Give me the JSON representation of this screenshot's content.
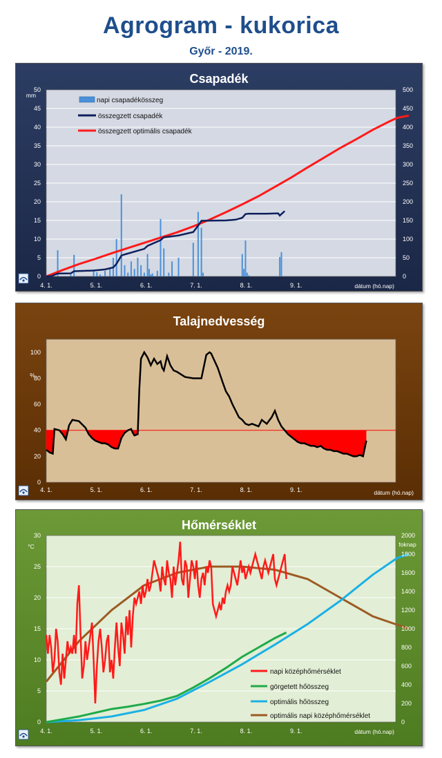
{
  "header": {
    "title": "Agrogram - kukorica",
    "subtitle": "Győr - 2019."
  },
  "colors": {
    "title": "#1f4e8c",
    "rain_panel": "#24355a",
    "soil_panel": "#6b3a0a",
    "temp_panel": "#5e8c2c"
  },
  "icons": {
    "logo": "omsz-logo-icon"
  },
  "chart_data": [
    {
      "type": "bar",
      "title": "Csapadék",
      "ylabel_left": "mm",
      "ylim_left": [
        0,
        50
      ],
      "yticks_left": [
        "0",
        "5",
        "10",
        "15",
        "20",
        "25",
        "30",
        "35",
        "40",
        "45",
        "50"
      ],
      "ylabel_right": "",
      "ylim_right": [
        0,
        500
      ],
      "yticks_right": [
        "0",
        "50",
        "100",
        "150",
        "200",
        "250",
        "300",
        "350",
        "400",
        "450",
        "500"
      ],
      "xlabel": "dátum (hó.nap)",
      "xticks": [
        "4. 1.",
        "5. 1.",
        "6. 1.",
        "7. 1.",
        "8. 1.",
        "9. 1."
      ],
      "legend_position": "top-left",
      "grid": true,
      "series": [
        {
          "name": "napi csapadékösszeg",
          "kind": "bar",
          "axis": "left",
          "color": "#4a90d9",
          "x": [
            4,
            7,
            15,
            17,
            29,
            31,
            33,
            36,
            39,
            41,
            43,
            46,
            48,
            50,
            52,
            54,
            56,
            58,
            60,
            62,
            63,
            64,
            65,
            68,
            70,
            72,
            75,
            77,
            81,
            90,
            93,
            95,
            96,
            120,
            121,
            122,
            123,
            124,
            143,
            144
          ],
          "y": [
            0.6,
            7.0,
            0.5,
            5.8,
            1.8,
            1.1,
            0.5,
            1.5,
            2.0,
            5.0,
            10.0,
            22.0,
            3.0,
            1.0,
            4.0,
            2.0,
            5.0,
            3.0,
            1.0,
            6.0,
            2.0,
            0.5,
            0.8,
            1.5,
            15.4,
            7.5,
            1.0,
            4.0,
            5.0,
            9.0,
            17.3,
            13.0,
            1.0,
            6.0,
            2.0,
            9.6,
            1.0,
            0.3,
            5.2,
            6.5
          ]
        },
        {
          "name": "összegzett csapadék",
          "kind": "step",
          "axis": "right",
          "color": "#0d1f5c",
          "x": [
            0,
            3,
            7,
            15,
            17,
            29,
            33,
            36,
            41,
            43,
            46,
            48,
            52,
            56,
            60,
            62,
            70,
            72,
            81,
            90,
            93,
            95,
            110,
            116,
            120,
            122,
            124,
            135,
            142,
            143,
            144,
            146
          ],
          "y": [
            0,
            0.6,
            7.6,
            8.1,
            13.9,
            15.7,
            17.3,
            18.8,
            23.8,
            33.8,
            55.8,
            58.8,
            63.8,
            68.8,
            73.8,
            81.8,
            97.2,
            104.7,
            109.7,
            118.7,
            136,
            149,
            150,
            152,
            157,
            167,
            168,
            168,
            169,
            163,
            167,
            175
          ]
        },
        {
          "name": "összegzett optimális csapadék",
          "kind": "line",
          "axis": "right",
          "color": "#ff1a1a",
          "x": [
            0,
            10,
            20,
            30,
            40,
            50,
            60,
            70,
            80,
            90,
            100,
            110,
            120,
            130,
            140,
            150,
            160,
            170,
            180,
            190,
            200,
            210,
            215,
            222
          ],
          "y": [
            0,
            17,
            33,
            47,
            62,
            76,
            90,
            104,
            118,
            134,
            152,
            172,
            193,
            215,
            240,
            265,
            292,
            318,
            344,
            368,
            393,
            415,
            425,
            431
          ]
        }
      ]
    },
    {
      "type": "line",
      "title": "Talajnedvesség",
      "ylabel": "%",
      "ylim": [
        0,
        110
      ],
      "yticks": [
        "0",
        "20",
        "40",
        "60",
        "80",
        "100"
      ],
      "xlabel": "dátum (hó.nap)",
      "xticks": [
        "4. 1.",
        "5. 1.",
        "6. 1.",
        "7. 1.",
        "8. 1.",
        "9. 1."
      ],
      "threshold": 40,
      "grid": false,
      "series": [
        {
          "name": "talajnedvesség",
          "color": "#000000",
          "fill_below_threshold": "#ff0000",
          "x": [
            0,
            2,
            4,
            5,
            8,
            10,
            12,
            14,
            16,
            20,
            24,
            26,
            28,
            30,
            32,
            34,
            36,
            38,
            40,
            42,
            44,
            46,
            47,
            48,
            50,
            52,
            53,
            54,
            56,
            57,
            58,
            60,
            62,
            64,
            66,
            68,
            70,
            71,
            72,
            74,
            76,
            77,
            78,
            80,
            85,
            90,
            95,
            98,
            100,
            101,
            105,
            108,
            110,
            112,
            114,
            116,
            118,
            120,
            122,
            124,
            126,
            128,
            130,
            132,
            135,
            138,
            140,
            142,
            144,
            146,
            148,
            150,
            152,
            154,
            156,
            158,
            160,
            162,
            164,
            166,
            168,
            170,
            172,
            174,
            176,
            178,
            180,
            182,
            184,
            186,
            188,
            190,
            192,
            194,
            196
          ],
          "y": [
            25,
            23,
            22,
            41,
            40,
            37,
            33,
            44,
            48,
            47,
            42,
            37,
            34,
            32,
            31,
            30,
            30,
            29,
            27,
            26,
            26,
            34,
            36,
            38,
            40,
            41,
            38,
            36,
            37,
            72,
            95,
            100,
            96,
            90,
            95,
            91,
            93,
            88,
            86,
            97,
            90,
            88,
            86,
            85,
            81,
            80,
            80,
            98,
            100,
            99,
            88,
            77,
            70,
            66,
            60,
            55,
            50,
            48,
            45,
            44,
            45,
            44,
            43,
            48,
            45,
            50,
            55,
            48,
            43,
            40,
            37,
            35,
            33,
            31,
            30,
            30,
            29,
            28,
            28,
            27,
            28,
            26,
            25,
            25,
            24,
            24,
            23,
            22,
            22,
            21,
            20,
            20,
            21,
            20,
            32
          ]
        }
      ]
    },
    {
      "type": "line",
      "title": "Hőmérséklet",
      "ylabel_left": "°C",
      "ylim_left": [
        0,
        30
      ],
      "yticks_left": [
        "0",
        "5",
        "10",
        "15",
        "20",
        "25",
        "30"
      ],
      "ylabel_right": "foknap",
      "ylim_right": [
        0,
        2000
      ],
      "yticks_right": [
        "0",
        "200",
        "400",
        "600",
        "800",
        "1000",
        "1200",
        "1400",
        "1600",
        "1800",
        "2000"
      ],
      "xlabel": "dátum (hó.nap)",
      "xticks": [
        "4. 1.",
        "5. 1.",
        "6. 1.",
        "7. 1.",
        "8. 1.",
        "9. 1."
      ],
      "legend_position": "bottom-right",
      "grid": true,
      "series": [
        {
          "name": "napi középhőmérséklet",
          "axis": "left",
          "color": "#ff1a1a",
          "x": [
            0,
            1,
            2,
            3,
            4,
            5,
            6,
            7,
            8,
            9,
            10,
            11,
            12,
            13,
            14,
            15,
            16,
            17,
            18,
            19,
            20,
            21,
            22,
            23,
            24,
            25,
            26,
            27,
            28,
            29,
            30,
            31,
            32,
            33,
            34,
            35,
            36,
            37,
            38,
            39,
            40,
            41,
            42,
            43,
            44,
            45,
            46,
            47,
            48,
            49,
            50,
            51,
            52,
            53,
            54,
            55,
            56,
            57,
            58,
            59,
            60,
            61,
            62,
            63,
            64,
            65,
            66,
            67,
            68,
            69,
            70,
            71,
            72,
            73,
            74,
            75,
            76,
            77,
            78,
            79,
            80,
            81,
            82,
            83,
            84,
            85,
            86,
            87,
            88,
            89,
            90,
            91,
            92,
            93,
            94,
            95,
            96,
            97,
            98,
            99,
            100,
            101,
            102,
            103,
            104,
            105,
            106,
            107,
            108,
            109,
            110,
            111,
            112,
            113,
            114,
            115,
            116,
            117,
            118,
            119,
            120,
            121,
            122,
            123,
            124,
            125,
            126,
            127,
            128,
            129,
            130,
            131,
            132,
            133,
            134,
            135,
            136,
            137,
            138,
            139,
            140,
            141,
            142,
            143,
            144,
            145,
            146,
            147
          ],
          "y": [
            14,
            11,
            14,
            12,
            8,
            10,
            15,
            13,
            8,
            6,
            11,
            7,
            10,
            13,
            11,
            12,
            11,
            14,
            11,
            19,
            22,
            14,
            7,
            9,
            13,
            10,
            12,
            14,
            16,
            10,
            3,
            9,
            13,
            15,
            12,
            8,
            10,
            13,
            14,
            8,
            10,
            7,
            12,
            16,
            12,
            9,
            16,
            14,
            11,
            17,
            14,
            18,
            12,
            17,
            20,
            19,
            20,
            21,
            19,
            22,
            20,
            21,
            23,
            21,
            22,
            24,
            26,
            25,
            24,
            23,
            21,
            25,
            23,
            22,
            26,
            24,
            23,
            20,
            25,
            22,
            24,
            26,
            29,
            23,
            22,
            26,
            25,
            20,
            23,
            26,
            25,
            23,
            26,
            22,
            20,
            23,
            24,
            22,
            25,
            24,
            26,
            25,
            19,
            18,
            17,
            18,
            19,
            18,
            20,
            19,
            21,
            22,
            21,
            22,
            25,
            24,
            23,
            22,
            24,
            26,
            24,
            25,
            23,
            24,
            25,
            24,
            25,
            26,
            27,
            26,
            25,
            24,
            23,
            25,
            26,
            25,
            24,
            25,
            26,
            27,
            23,
            22,
            23,
            24,
            25,
            26,
            27,
            23
          ]
        },
        {
          "name": "görgetett hőösszeg",
          "axis": "right",
          "color": "#1faa4a",
          "x": [
            0,
            10,
            20,
            30,
            40,
            50,
            60,
            70,
            80,
            90,
            100,
            110,
            120,
            130,
            140,
            147
          ],
          "y": [
            0,
            30,
            60,
            100,
            140,
            165,
            195,
            230,
            280,
            370,
            470,
            580,
            700,
            800,
            900,
            960
          ]
        },
        {
          "name": "optimális hőösszeg",
          "axis": "right",
          "color": "#1ab0e6",
          "x": [
            0,
            20,
            40,
            60,
            80,
            100,
            120,
            140,
            160,
            180,
            200,
            215,
            222
          ],
          "y": [
            0,
            20,
            60,
            130,
            250,
            430,
            620,
            830,
            1050,
            1300,
            1580,
            1760,
            1800
          ]
        },
        {
          "name": "optimális napi középhőmérséklet",
          "axis": "left",
          "color": "#9c5a24",
          "x": [
            0,
            20,
            40,
            60,
            80,
            100,
            110,
            120,
            140,
            160,
            180,
            200,
            222
          ],
          "y": [
            6.5,
            13,
            18,
            22,
            24,
            25,
            25,
            25,
            24.5,
            23,
            20,
            17,
            15
          ]
        }
      ]
    }
  ]
}
